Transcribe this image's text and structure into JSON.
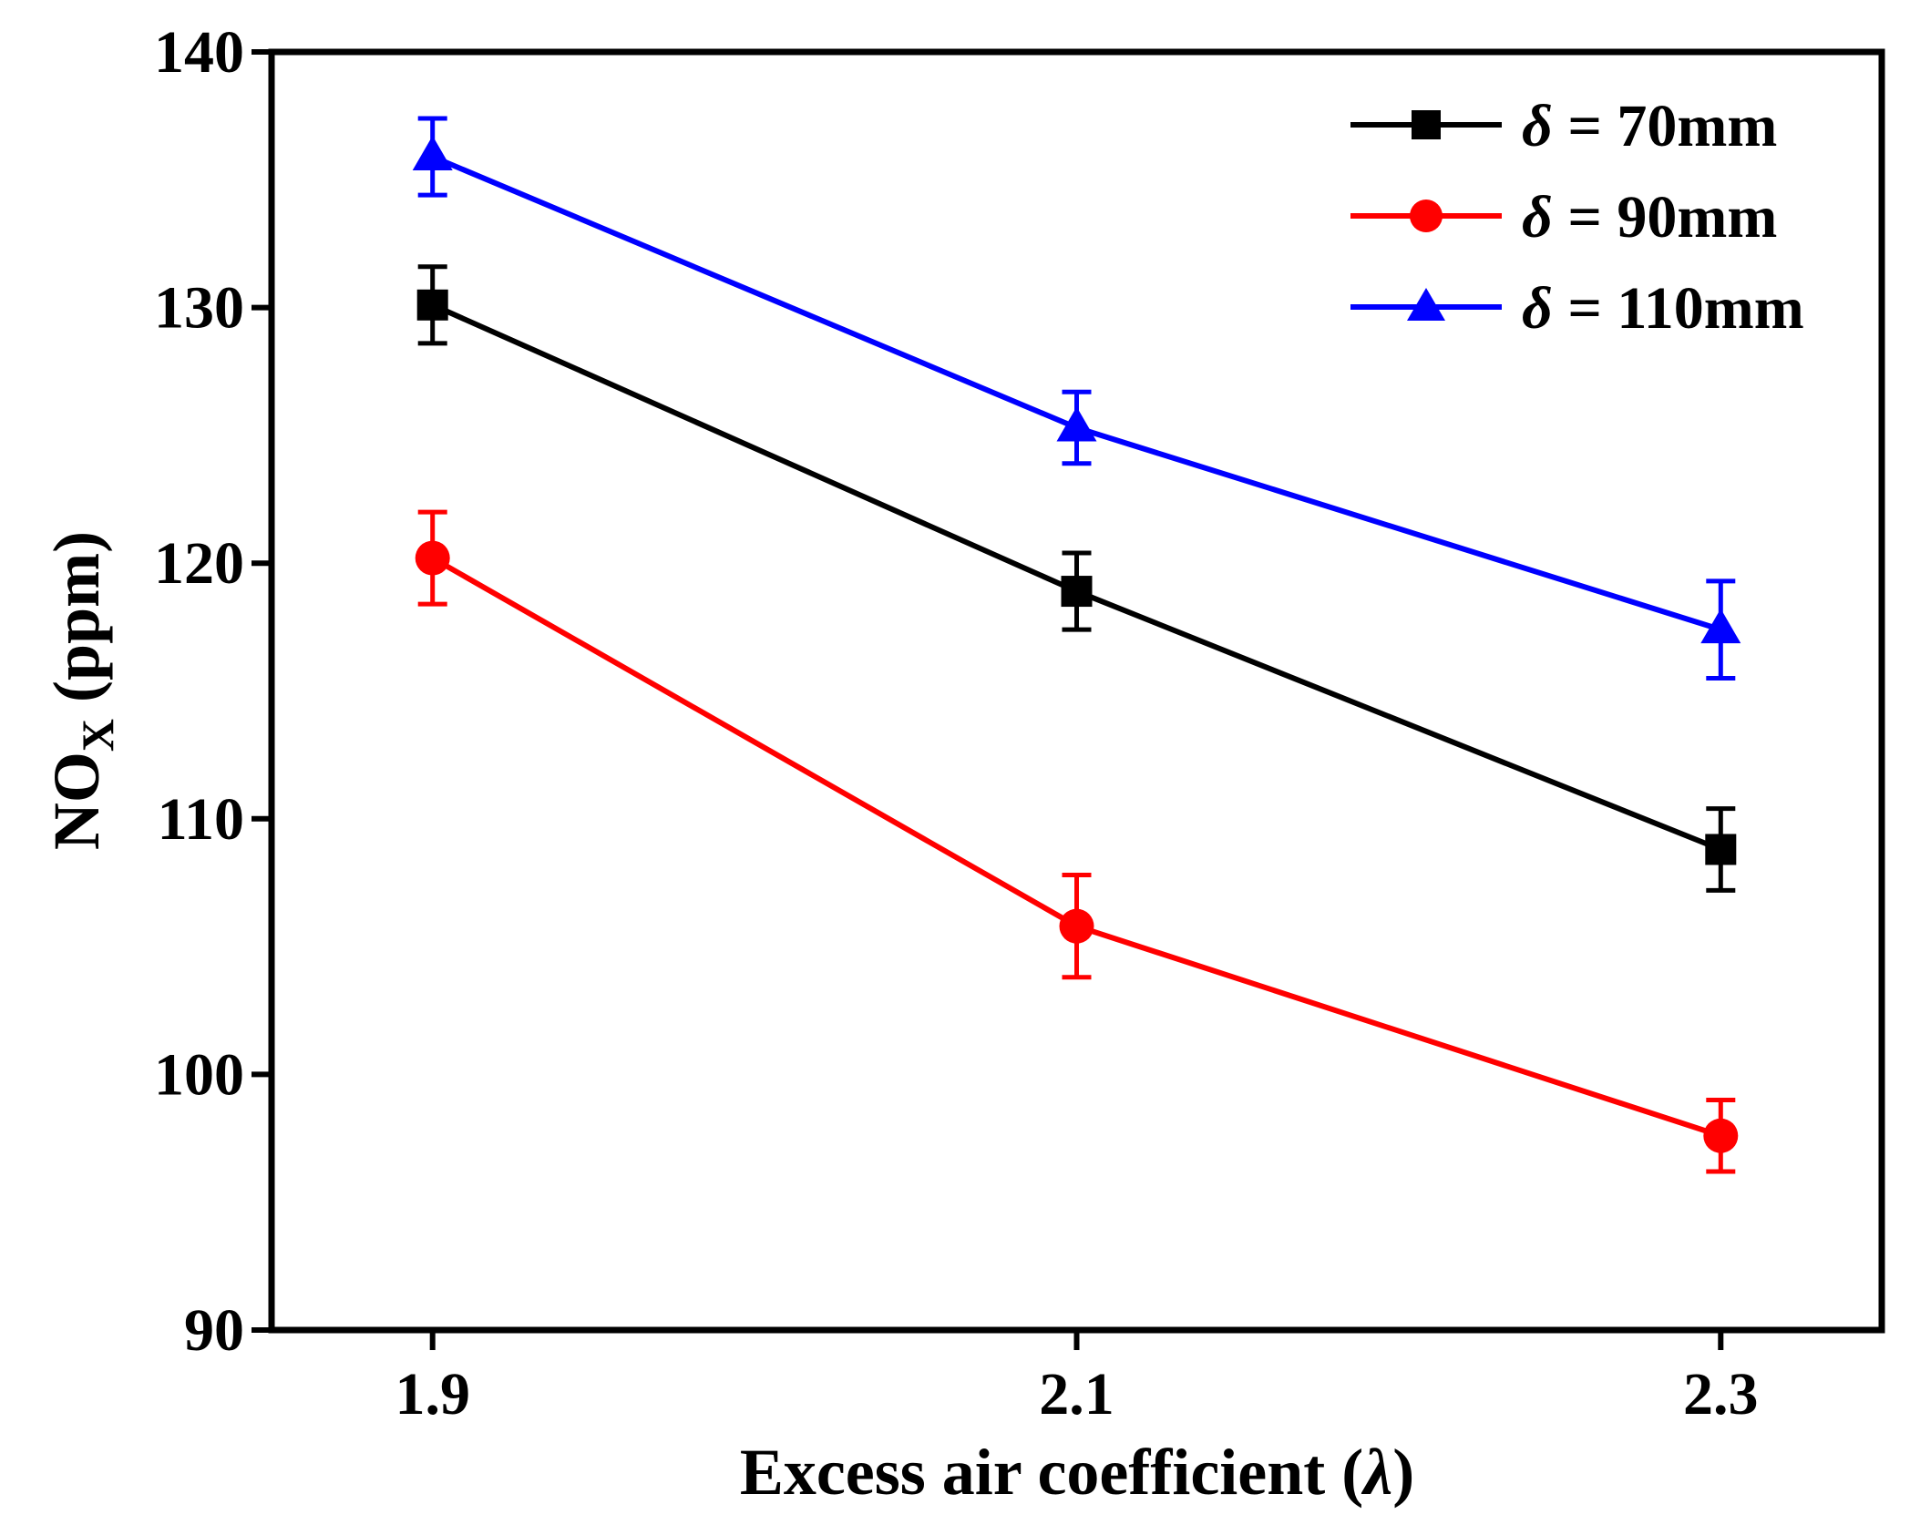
{
  "chart_data": {
    "type": "line",
    "title": "",
    "xlabel": "Excess air coefficient (",
    "xlabel_symbol": "λ",
    "xlabel_close": ")",
    "ylabel": "NO",
    "ylabel_sub": "X",
    "ylabel_unit": " (ppm)",
    "x": [
      1.9,
      2.1,
      2.3
    ],
    "x_tick_labels": [
      "1.9",
      "2.1",
      "2.3"
    ],
    "xlim": [
      1.85,
      2.35
    ],
    "ylim": [
      90,
      140
    ],
    "y_ticks": [
      90,
      100,
      110,
      120,
      130,
      140
    ],
    "y_tick_labels": [
      "90",
      "100",
      "110",
      "120",
      "130",
      "140"
    ],
    "grid": false,
    "legend_position": "top-right",
    "series": [
      {
        "name": "δ = 70mm",
        "symbol": "δ",
        "label_rest": " = 70mm",
        "color": "#000000",
        "marker": "square",
        "values": [
          130.1,
          118.9,
          108.8
        ],
        "errors": [
          1.5,
          1.5,
          1.6
        ]
      },
      {
        "name": "δ = 90mm",
        "symbol": "δ",
        "label_rest": " = 90mm",
        "color": "#ff0000",
        "marker": "circle",
        "values": [
          120.2,
          105.8,
          97.6
        ],
        "errors": [
          1.8,
          2.0,
          1.4
        ]
      },
      {
        "name": "δ = 110mm",
        "symbol": "δ",
        "label_rest": " = 110mm",
        "color": "#0000ff",
        "marker": "triangle",
        "values": [
          135.9,
          125.3,
          117.4
        ],
        "errors": [
          1.5,
          1.4,
          1.9
        ]
      }
    ]
  }
}
